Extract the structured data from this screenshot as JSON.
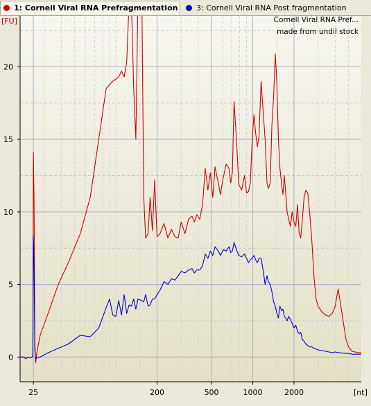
{
  "tabs": [
    {
      "label": "1: Cornell Viral RNA Prefragmentation",
      "color": "#d00000"
    },
    {
      "label": "3: Cornell Viral RNA Post fragmentation",
      "color": "#0000cc"
    }
  ],
  "annotation": {
    "line1": "Cornell Viral RNA Pref...",
    "line2": "made from undil stock"
  },
  "colors": {
    "background": "#ebe9d9",
    "plot_top": "#f7f6ef",
    "plot_bottom": "#e3e0c6",
    "grid": "#b8b8cc",
    "red": "#d00000",
    "blue": "#0000cc"
  },
  "chart_data": {
    "type": "line",
    "ylabel": "[FU]",
    "xlabel": "[nt]",
    "ylim": [
      -1.7,
      23.5
    ],
    "xlim": [
      20,
      6200
    ],
    "x_scale": "log",
    "grid": true,
    "y_ticks": [
      0,
      5,
      10,
      15,
      20
    ],
    "x_ticks": [
      25,
      200,
      500,
      1000,
      2000
    ],
    "series": [
      {
        "name": "1: Cornell Viral RNA Prefragmentation",
        "color": "#d00000",
        "points": [
          [
            20,
            0
          ],
          [
            21,
            0.02
          ],
          [
            22,
            -0.1
          ],
          [
            23,
            0
          ],
          [
            24,
            -0.05
          ],
          [
            24.5,
            0
          ],
          [
            24.8,
            0.1
          ],
          [
            25,
            14.1
          ],
          [
            25.3,
            10.5
          ],
          [
            25.6,
            1.0
          ],
          [
            26,
            -0.4
          ],
          [
            26.5,
            0.3
          ],
          [
            28,
            1.5
          ],
          [
            32,
            3.0
          ],
          [
            38,
            5.0
          ],
          [
            45,
            6.5
          ],
          [
            55,
            8.5
          ],
          [
            65,
            11.0
          ],
          [
            75,
            15.0
          ],
          [
            85,
            18.5
          ],
          [
            95,
            19.0
          ],
          [
            105,
            19.3
          ],
          [
            110,
            19.7
          ],
          [
            115,
            19.3
          ],
          [
            120,
            20.3
          ],
          [
            125,
            24.5
          ],
          [
            130,
            24.5
          ],
          [
            135,
            18.5
          ],
          [
            140,
            15.0
          ],
          [
            145,
            24.5
          ],
          [
            155,
            24.5
          ],
          [
            160,
            11.0
          ],
          [
            165,
            8.2
          ],
          [
            172,
            8.5
          ],
          [
            178,
            11.0
          ],
          [
            185,
            8.7
          ],
          [
            192,
            12.2
          ],
          [
            200,
            8.3
          ],
          [
            210,
            8.5
          ],
          [
            225,
            9.2
          ],
          [
            240,
            8.2
          ],
          [
            255,
            8.8
          ],
          [
            270,
            8.3
          ],
          [
            285,
            8.2
          ],
          [
            300,
            9.3
          ],
          [
            320,
            8.5
          ],
          [
            340,
            9.5
          ],
          [
            360,
            9.7
          ],
          [
            375,
            9.3
          ],
          [
            390,
            9.8
          ],
          [
            410,
            9.5
          ],
          [
            430,
            10.5
          ],
          [
            450,
            13.0
          ],
          [
            470,
            11.5
          ],
          [
            490,
            12.7
          ],
          [
            510,
            11.0
          ],
          [
            530,
            13.1
          ],
          [
            560,
            12.0
          ],
          [
            580,
            11.2
          ],
          [
            610,
            12.4
          ],
          [
            640,
            13.3
          ],
          [
            670,
            13.0
          ],
          [
            690,
            12.0
          ],
          [
            710,
            12.7
          ],
          [
            730,
            17.6
          ],
          [
            760,
            15.0
          ],
          [
            790,
            11.9
          ],
          [
            830,
            11.5
          ],
          [
            870,
            12.5
          ],
          [
            900,
            11.3
          ],
          [
            930,
            11.4
          ],
          [
            960,
            12.0
          ],
          [
            990,
            15.0
          ],
          [
            1020,
            16.7
          ],
          [
            1050,
            15.4
          ],
          [
            1080,
            14.5
          ],
          [
            1110,
            15.2
          ],
          [
            1150,
            19.0
          ],
          [
            1190,
            17.0
          ],
          [
            1230,
            15.0
          ],
          [
            1270,
            12.0
          ],
          [
            1300,
            11.6
          ],
          [
            1340,
            12.0
          ],
          [
            1380,
            16.0
          ],
          [
            1420,
            18.0
          ],
          [
            1460,
            20.9
          ],
          [
            1500,
            18.8
          ],
          [
            1540,
            15.0
          ],
          [
            1580,
            13.0
          ],
          [
            1620,
            12.0
          ],
          [
            1660,
            11.2
          ],
          [
            1700,
            12.5
          ],
          [
            1740,
            11.3
          ],
          [
            1780,
            10.0
          ],
          [
            1830,
            9.5
          ],
          [
            1880,
            9.0
          ],
          [
            1940,
            10.0
          ],
          [
            2000,
            9.3
          ],
          [
            2060,
            9.0
          ],
          [
            2120,
            10.5
          ],
          [
            2180,
            8.5
          ],
          [
            2240,
            8.2
          ],
          [
            2300,
            9.5
          ],
          [
            2370,
            11.0
          ],
          [
            2440,
            11.5
          ],
          [
            2520,
            11.3
          ],
          [
            2600,
            10.0
          ],
          [
            2700,
            8.0
          ],
          [
            2800,
            5.5
          ],
          [
            2900,
            4.0
          ],
          [
            3000,
            3.5
          ],
          [
            3200,
            3.1
          ],
          [
            3400,
            2.9
          ],
          [
            3600,
            2.8
          ],
          [
            3800,
            3.0
          ],
          [
            4000,
            3.5
          ],
          [
            4200,
            4.7
          ],
          [
            4400,
            3.5
          ],
          [
            4600,
            2.3
          ],
          [
            4800,
            1.2
          ],
          [
            5000,
            0.7
          ],
          [
            5300,
            0.4
          ],
          [
            5600,
            0.35
          ],
          [
            5900,
            0.3
          ],
          [
            6200,
            0.3
          ]
        ]
      },
      {
        "name": "3: Cornell Viral RNA Post fragmentation",
        "color": "#0000cc",
        "points": [
          [
            20,
            0
          ],
          [
            21,
            0.02
          ],
          [
            22,
            -0.1
          ],
          [
            23,
            0
          ],
          [
            24,
            -0.05
          ],
          [
            24.5,
            0
          ],
          [
            24.8,
            0.1
          ],
          [
            25,
            8.3
          ],
          [
            25.3,
            6.0
          ],
          [
            25.6,
            0.5
          ],
          [
            26,
            -0.1
          ],
          [
            28,
            0
          ],
          [
            32,
            0.3
          ],
          [
            38,
            0.6
          ],
          [
            45,
            0.9
          ],
          [
            55,
            1.5
          ],
          [
            65,
            1.4
          ],
          [
            75,
            2.0
          ],
          [
            85,
            3.4
          ],
          [
            90,
            4.0
          ],
          [
            95,
            2.9
          ],
          [
            100,
            2.8
          ],
          [
            105,
            3.9
          ],
          [
            110,
            2.9
          ],
          [
            115,
            4.3
          ],
          [
            120,
            3.0
          ],
          [
            125,
            3.6
          ],
          [
            130,
            3.5
          ],
          [
            135,
            4.0
          ],
          [
            140,
            3.3
          ],
          [
            145,
            4.0
          ],
          [
            155,
            3.9
          ],
          [
            160,
            3.8
          ],
          [
            165,
            4.3
          ],
          [
            172,
            3.5
          ],
          [
            178,
            3.6
          ],
          [
            185,
            4.0
          ],
          [
            192,
            4.0
          ],
          [
            200,
            4.3
          ],
          [
            210,
            4.6
          ],
          [
            225,
            5.2
          ],
          [
            240,
            5.0
          ],
          [
            255,
            5.4
          ],
          [
            270,
            5.3
          ],
          [
            285,
            5.6
          ],
          [
            300,
            5.9
          ],
          [
            320,
            5.8
          ],
          [
            340,
            6.0
          ],
          [
            360,
            6.1
          ],
          [
            375,
            5.8
          ],
          [
            390,
            6.0
          ],
          [
            410,
            6.0
          ],
          [
            430,
            6.3
          ],
          [
            450,
            7.1
          ],
          [
            470,
            6.8
          ],
          [
            490,
            7.3
          ],
          [
            510,
            7.0
          ],
          [
            530,
            7.6
          ],
          [
            560,
            7.3
          ],
          [
            580,
            7.0
          ],
          [
            610,
            7.4
          ],
          [
            640,
            7.3
          ],
          [
            670,
            7.6
          ],
          [
            690,
            7.2
          ],
          [
            710,
            7.3
          ],
          [
            730,
            7.9
          ],
          [
            760,
            7.4
          ],
          [
            790,
            7.0
          ],
          [
            830,
            6.9
          ],
          [
            870,
            7.1
          ],
          [
            900,
            6.8
          ],
          [
            930,
            6.5
          ],
          [
            960,
            6.7
          ],
          [
            990,
            6.8
          ],
          [
            1020,
            7.0
          ],
          [
            1050,
            6.7
          ],
          [
            1080,
            6.5
          ],
          [
            1110,
            6.8
          ],
          [
            1150,
            6.8
          ],
          [
            1190,
            6.0
          ],
          [
            1230,
            5.0
          ],
          [
            1270,
            5.6
          ],
          [
            1300,
            5.2
          ],
          [
            1340,
            5.0
          ],
          [
            1380,
            4.5
          ],
          [
            1420,
            3.8
          ],
          [
            1460,
            3.5
          ],
          [
            1500,
            3.0
          ],
          [
            1540,
            2.7
          ],
          [
            1580,
            3.5
          ],
          [
            1620,
            3.2
          ],
          [
            1660,
            3.3
          ],
          [
            1700,
            2.8
          ],
          [
            1740,
            2.7
          ],
          [
            1780,
            2.5
          ],
          [
            1830,
            2.8
          ],
          [
            1880,
            2.6
          ],
          [
            1940,
            2.3
          ],
          [
            2000,
            2.0
          ],
          [
            2060,
            2.2
          ],
          [
            2120,
            1.8
          ],
          [
            2180,
            1.6
          ],
          [
            2240,
            1.7
          ],
          [
            2300,
            1.2
          ],
          [
            2370,
            1.1
          ],
          [
            2440,
            0.9
          ],
          [
            2520,
            0.8
          ],
          [
            2600,
            0.7
          ],
          [
            2700,
            0.7
          ],
          [
            2800,
            0.6
          ],
          [
            2900,
            0.55
          ],
          [
            3000,
            0.5
          ],
          [
            3200,
            0.45
          ],
          [
            3400,
            0.4
          ],
          [
            3600,
            0.35
          ],
          [
            3800,
            0.3
          ],
          [
            4000,
            0.35
          ],
          [
            4200,
            0.3
          ],
          [
            4400,
            0.3
          ],
          [
            4600,
            0.25
          ],
          [
            4800,
            0.25
          ],
          [
            5000,
            0.25
          ],
          [
            5300,
            0.2
          ],
          [
            5600,
            0.2
          ],
          [
            5900,
            0.2
          ],
          [
            6200,
            0.2
          ]
        ]
      }
    ]
  }
}
